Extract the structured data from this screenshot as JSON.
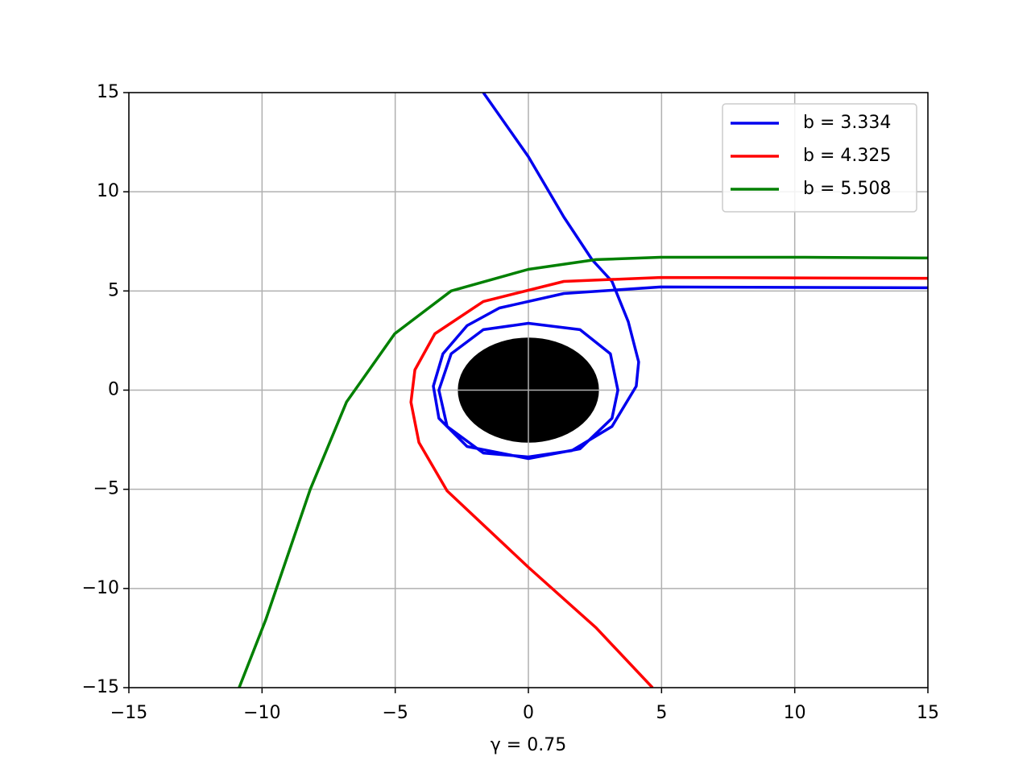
{
  "chart_data": {
    "type": "line",
    "xlabel": "γ = 0.75",
    "xlim": [
      -15,
      15
    ],
    "ylim": [
      -15,
      15
    ],
    "xticks": [
      {
        "value": -15,
        "label": "−15"
      },
      {
        "value": -10,
        "label": "−10"
      },
      {
        "value": -5,
        "label": "−5"
      },
      0,
      5,
      10,
      15
    ],
    "yticks": [
      {
        "value": -15,
        "label": "−15"
      },
      {
        "value": -10,
        "label": "−10"
      },
      {
        "value": -5,
        "label": "−5"
      },
      0,
      5,
      10,
      15
    ],
    "grid": true,
    "legend": "upper right",
    "disk": {
      "radius": 2.65,
      "color": "#000000"
    },
    "series": [
      {
        "name": "b = 3.334",
        "color": "#0000ee",
        "x": [
          15,
          4.96,
          1.33,
          -1.09,
          -2.3,
          -3.21,
          -3.57,
          -3.36,
          -2.3,
          0,
          1.94,
          3.14,
          3.36,
          3.08,
          1.94,
          0,
          -1.69,
          -2.9,
          -3.36,
          -3.05,
          -1.69,
          0,
          1.63,
          3.14,
          4.05,
          4.14,
          3.75,
          3.14,
          2.39,
          1.33,
          0,
          -1.69
        ],
        "values": [
          5.16,
          5.2,
          4.87,
          4.14,
          3.25,
          1.83,
          0.2,
          -1.42,
          -2.84,
          -3.45,
          -2.96,
          -1.42,
          0,
          1.83,
          3.05,
          3.37,
          3.05,
          1.83,
          0,
          -1.83,
          -3.17,
          -3.37,
          -3.05,
          -1.83,
          0.2,
          1.42,
          3.45,
          5.48,
          6.58,
          8.73,
          11.77,
          15
        ]
      },
      {
        "name": "b = 4.325",
        "color": "#ff0000",
        "x": [
          15,
          4.96,
          1.33,
          -1.69,
          -3.51,
          -4.26,
          -4.41,
          -4.11,
          -3.05,
          0,
          2.54,
          4.66
        ],
        "values": [
          5.64,
          5.68,
          5.48,
          4.47,
          2.84,
          1.02,
          -0.61,
          -2.64,
          -5.08,
          -8.93,
          -11.98,
          -15
        ]
      },
      {
        "name": "b = 5.508",
        "color": "#008000",
        "x": [
          -10.86,
          -9.86,
          -8.19,
          -6.83,
          -5.02,
          -2.9,
          0,
          2.54,
          4.96,
          7.38,
          10.4,
          15
        ],
        "values": [
          -15,
          -11.57,
          -5,
          -0.6,
          2.84,
          5.0,
          6.09,
          6.58,
          6.7,
          6.7,
          6.7,
          6.66
        ]
      }
    ]
  }
}
